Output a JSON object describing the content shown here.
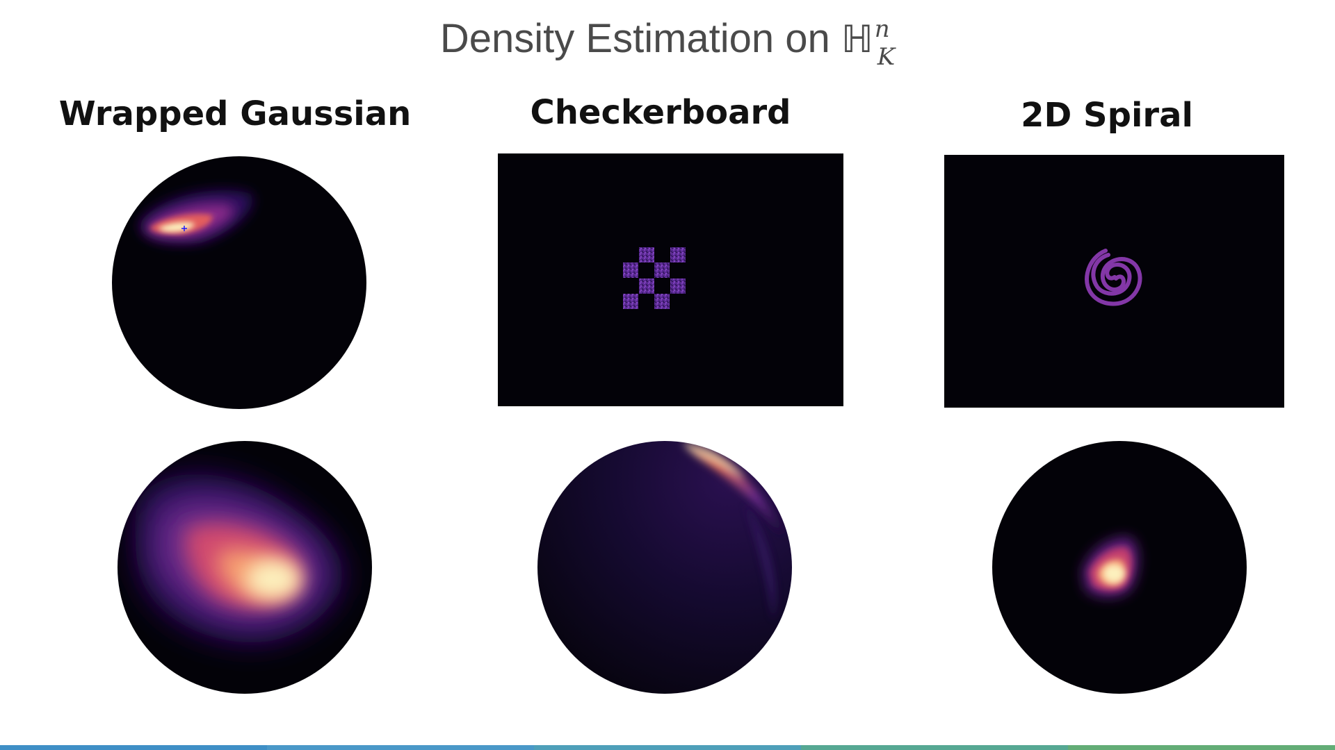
{
  "slide": {
    "title_text": "Density Estimation on ",
    "math_symbol": "ℍ",
    "math_sup": "n",
    "math_sub": "K"
  },
  "columns": [
    {
      "title": "Wrapped Gaussian"
    },
    {
      "title": "Checkerboard"
    },
    {
      "title": "2D Spiral"
    }
  ],
  "colors": {
    "background_dark": "#030208",
    "density_low": "#2a0f5c",
    "density_mid": "#b5367a",
    "density_high": "#fcf0bd",
    "checker_purple": "#5a2a92",
    "spiral_purple": "#8a3ab0",
    "marker_blue": "#1a1aff"
  },
  "footer": {
    "segments": [
      "#3f8fc6",
      "#4a98c8",
      "#4e9fb9",
      "#56a893",
      "#63ad76"
    ]
  }
}
